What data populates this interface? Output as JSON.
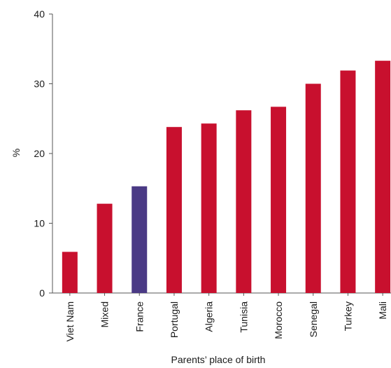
{
  "chart_data": {
    "type": "bar",
    "title": "",
    "xlabel": "Parents’ place of birth",
    "ylabel": "%",
    "ylim": [
      0,
      40
    ],
    "yticks": [
      0,
      10,
      20,
      30,
      40
    ],
    "grid": false,
    "categories": [
      "Viet Nam",
      "Mixed",
      "France",
      "Portugal",
      "Algeria",
      "Tunisia",
      "Morocco",
      "Senegal",
      "Turkey",
      "Mali"
    ],
    "values": [
      5.9,
      12.8,
      15.3,
      23.8,
      24.3,
      26.2,
      26.7,
      30.0,
      31.9,
      33.3
    ],
    "colors": [
      "#c8102e",
      "#c8102e",
      "#4a3a85",
      "#c8102e",
      "#c8102e",
      "#c8102e",
      "#c8102e",
      "#c8102e",
      "#c8102e",
      "#c8102e"
    ]
  }
}
